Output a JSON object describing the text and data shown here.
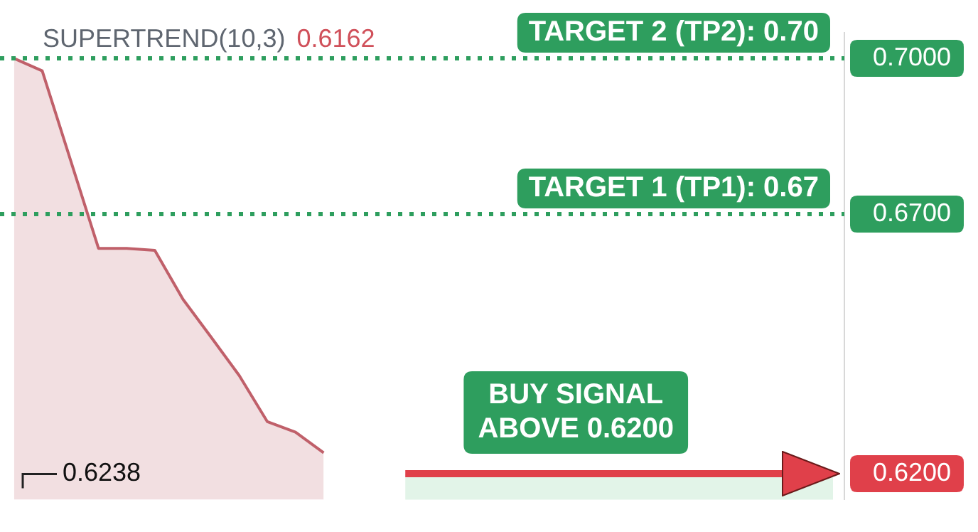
{
  "chart_data": {
    "type": "area",
    "title": "SUPERTREND(10,3)",
    "categories": [
      null,
      null,
      null,
      null,
      null,
      null,
      null,
      null,
      null,
      null,
      null,
      null,
      null,
      null,
      null,
      null,
      null,
      null,
      null,
      null,
      null,
      null,
      null,
      null,
      null,
      null,
      null,
      null,
      null,
      null
    ],
    "series": [
      {
        "color": "#c0606a",
        "values": [
          0.7,
          0.6976,
          0.6805,
          0.6634,
          0.6634,
          0.663,
          0.6536,
          0.6463,
          0.6389,
          0.63,
          0.628,
          0.624,
          null,
          null,
          null,
          null,
          null,
          null,
          null,
          null,
          null,
          null,
          null,
          null,
          null,
          null,
          null,
          null,
          null,
          null
        ]
      }
    ],
    "ylim": [
      0.615,
      0.705
    ],
    "yticks": [
      {
        "value": 0.7,
        "label": "0.7000"
      },
      {
        "value": 0.67,
        "label": "0.6700"
      },
      {
        "value": 0.62,
        "label": "0.6200"
      }
    ],
    "ref_lines": [
      {
        "axis": "y",
        "value": 0.7,
        "label": "TARGET 2 (TP2): 0.70",
        "color": "#2e9e5e",
        "line_style": "dotted"
      },
      {
        "axis": "y",
        "value": 0.67,
        "label": "TARGET 1 (TP1): 0.67",
        "color": "#2e9e5e",
        "line_style": "dotted"
      },
      {
        "axis": "y",
        "value": 0.62,
        "label": "BUY SIGNAL\nABOVE 0.6200",
        "color": "#e0404a",
        "line_style": "solid"
      }
    ],
    "bands": [
      {
        "axis": "y",
        "from": 0.615,
        "to": 0.62,
        "color": "#e2f4e8"
      }
    ],
    "annotations": [
      "0.6162",
      "0.6238"
    ],
    "grid": false,
    "legend": false
  }
}
